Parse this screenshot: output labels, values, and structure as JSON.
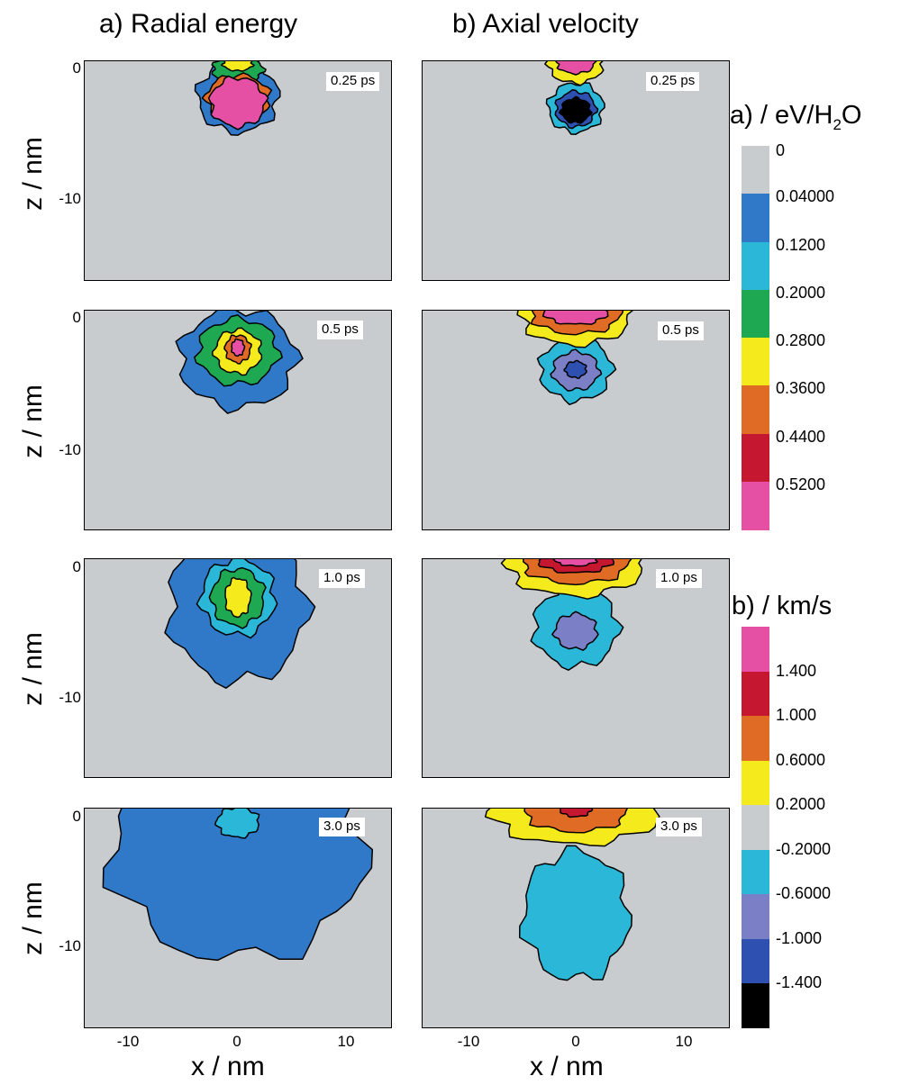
{
  "chart_data": {
    "type": "heatmap",
    "columns": [
      {
        "title": "a) Radial energy",
        "xlabel": "x / nm",
        "x_ticks": [
          "-10",
          "0",
          "10"
        ]
      },
      {
        "title": "b) Axial velocity",
        "xlabel": "x / nm",
        "x_ticks": [
          "-10",
          "0",
          "10"
        ]
      }
    ],
    "ylabel": "z / nm",
    "y_ticks": [
      "0",
      "-10"
    ],
    "xlim": [
      -14.5,
      14.5
    ],
    "ylim": [
      -16,
      0
    ],
    "times": [
      "0.25 ps",
      "0.5 ps",
      "1.0 ps",
      "3.0 ps"
    ],
    "colorbar_a": {
      "title_prefix": "a) / eV/H",
      "title_sub": "2",
      "title_suffix": "O",
      "levels": [
        "0",
        "0.04000",
        "0.1200",
        "0.2000",
        "0.2800",
        "0.3600",
        "0.4400",
        "0.5200"
      ],
      "colors": [
        "#c8ccce",
        "#2f79c8",
        "#2bb7d7",
        "#1fa852",
        "#f5ea1b",
        "#e06b25",
        "#c5172f",
        "#e550a5"
      ]
    },
    "colorbar_b": {
      "title": "b) / km/s",
      "levels": [
        "1.400",
        "1.000",
        "0.6000",
        "0.2000",
        "-0.2000",
        "-0.6000",
        "-1.000",
        "-1.400"
      ],
      "colors": [
        "#e550a5",
        "#c5172f",
        "#e06b25",
        "#f5ea1b",
        "#c8ccce",
        "#2bb7d7",
        "#7a7fc6",
        "#2e50b0",
        "#000000"
      ]
    },
    "blobs": {
      "a": [
        [
          {
            "z": -2.6,
            "rx": 3.8,
            "rz": 2.6,
            "c": "#2f79c8"
          },
          {
            "z": -0.6,
            "rx": 2.4,
            "rz": 1.0,
            "c": "#1fa852"
          },
          {
            "z": -0.2,
            "rx": 1.4,
            "rz": 0.5,
            "c": "#f5ea1b"
          },
          {
            "z": -2.7,
            "rx": 3.0,
            "rz": 1.7,
            "c": "#e06b25"
          },
          {
            "z": -3.0,
            "rx": 2.6,
            "rz": 1.8,
            "c": "#e550a5"
          }
        ],
        [
          {
            "z": -3.5,
            "rx": 5.5,
            "rz": 3.6,
            "c": "#2f79c8"
          },
          {
            "z": -3.0,
            "rx": 3.8,
            "rz": 2.4,
            "c": "#1fa852"
          },
          {
            "z": -3.0,
            "rx": 2.2,
            "rz": 1.6,
            "c": "#f5ea1b"
          },
          {
            "z": -2.8,
            "rx": 1.2,
            "rz": 1.0,
            "c": "#e06b25"
          },
          {
            "z": -2.7,
            "rx": 0.6,
            "rz": 0.6,
            "c": "#e550a5"
          }
        ],
        [
          {
            "z": -3.5,
            "rx": 6.5,
            "rz": 5.5,
            "c": "#2f79c8"
          },
          {
            "z": -2.8,
            "rx": 3.5,
            "rz": 2.8,
            "c": "#2bb7d7"
          },
          {
            "z": -2.8,
            "rx": 2.5,
            "rz": 2.1,
            "c": "#1fa852"
          },
          {
            "z": -2.8,
            "rx": 1.2,
            "rz": 1.4,
            "c": "#f5ea1b"
          }
        ],
        [
          {
            "z": -3.0,
            "rx": 12.0,
            "rz": 8.0,
            "c": "#2f79c8"
          },
          {
            "z": -1.0,
            "rx": 2.0,
            "rz": 1.1,
            "c": "#2bb7d7"
          }
        ]
      ],
      "b": [
        [
          {
            "z": -3.4,
            "rx": 2.6,
            "rz": 1.8,
            "c": "#2bb7d7"
          },
          {
            "z": -3.5,
            "rx": 1.9,
            "rz": 1.3,
            "c": "#2e50b0"
          },
          {
            "z": -3.6,
            "rx": 1.4,
            "rz": 0.9,
            "c": "#000000"
          },
          {
            "z": -0.2,
            "rx": 2.6,
            "rz": 1.4,
            "c": "#f5ea1b"
          },
          {
            "z": -0.1,
            "rx": 1.8,
            "rz": 0.8,
            "c": "#e550a5"
          }
        ],
        [
          {
            "z": -4.3,
            "rx": 3.4,
            "rz": 2.3,
            "c": "#2bb7d7"
          },
          {
            "z": -4.4,
            "rx": 2.2,
            "rz": 1.4,
            "c": "#7a7fc6"
          },
          {
            "z": -4.3,
            "rx": 1.0,
            "rz": 0.6,
            "c": "#2e50b0"
          },
          {
            "z": -0.3,
            "rx": 5.2,
            "rz": 2.2,
            "c": "#f5ea1b"
          },
          {
            "z": -0.2,
            "rx": 4.2,
            "rz": 1.5,
            "c": "#e06b25"
          },
          {
            "z": -0.1,
            "rx": 3.0,
            "rz": 0.9,
            "c": "#e550a5"
          }
        ],
        [
          {
            "z": -5.0,
            "rx": 4.0,
            "rz": 2.9,
            "c": "#2bb7d7"
          },
          {
            "z": -5.3,
            "rx": 2.0,
            "rz": 1.3,
            "c": "#7a7fc6"
          },
          {
            "z": -0.3,
            "rx": 6.5,
            "rz": 2.4,
            "c": "#f5ea1b"
          },
          {
            "z": -0.2,
            "rx": 5.0,
            "rz": 1.6,
            "c": "#e06b25"
          },
          {
            "z": -0.1,
            "rx": 3.5,
            "rz": 0.9,
            "c": "#c5172f"
          },
          {
            "z": 0.0,
            "rx": 2.0,
            "rz": 0.5,
            "c": "#e550a5"
          }
        ],
        [
          {
            "z": -7.8,
            "rx": 5.0,
            "rz": 4.7,
            "c": "#2bb7d7"
          },
          {
            "z": -0.2,
            "rx": 8.0,
            "rz": 2.4,
            "c": "#f5ea1b"
          },
          {
            "z": -0.2,
            "rx": 4.8,
            "rz": 1.5,
            "c": "#e06b25"
          },
          {
            "z": 0.0,
            "rx": 1.5,
            "rz": 0.6,
            "c": "#c5172f"
          }
        ]
      ]
    }
  }
}
